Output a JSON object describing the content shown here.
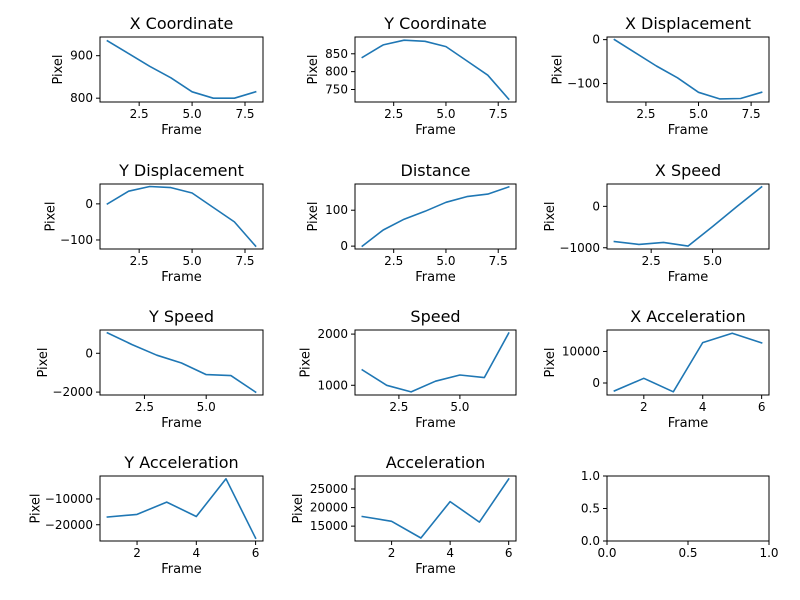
{
  "chart_data": [
    {
      "type": "line",
      "title": "X Coordinate",
      "xlabel": "Frame",
      "ylabel": "Pixel",
      "x": [
        1,
        2,
        3,
        4,
        5,
        6,
        7,
        8
      ],
      "values": [
        935,
        905,
        875,
        848,
        815,
        800,
        800,
        815
      ],
      "xlim": [
        0.65,
        8.35
      ],
      "ylim": [
        791,
        944
      ],
      "xticks": [
        2.5,
        5.0,
        7.5
      ],
      "xtick_labels": [
        "2.5",
        "5.0",
        "7.5"
      ],
      "yticks": [
        800,
        900
      ],
      "ytick_labels": [
        "800",
        "900"
      ]
    },
    {
      "type": "line",
      "title": "Y Coordinate",
      "xlabel": "Frame",
      "ylabel": "Pixel",
      "x": [
        1,
        2,
        3,
        4,
        5,
        6,
        7,
        8
      ],
      "values": [
        840,
        875,
        888,
        885,
        870,
        830,
        790,
        723
      ],
      "xlim": [
        0.65,
        8.35
      ],
      "ylim": [
        715,
        897
      ],
      "xticks": [
        2.5,
        5.0,
        7.5
      ],
      "xtick_labels": [
        "2.5",
        "5.0",
        "7.5"
      ],
      "yticks": [
        750,
        800,
        850
      ],
      "ytick_labels": [
        "750",
        "800",
        "850"
      ]
    },
    {
      "type": "line",
      "title": "X Displacement",
      "xlabel": "Frame",
      "ylabel": "Pixel",
      "x": [
        1,
        2,
        3,
        4,
        5,
        6,
        7,
        8
      ],
      "values": [
        0,
        -30,
        -60,
        -87,
        -120,
        -135,
        -134,
        -120
      ],
      "xlim": [
        0.65,
        8.35
      ],
      "ylim": [
        -142,
        6
      ],
      "xticks": [
        2.5,
        5.0,
        7.5
      ],
      "xtick_labels": [
        "2.5",
        "5.0",
        "7.5"
      ],
      "yticks": [
        -100,
        0
      ],
      "ytick_labels": [
        "−100",
        "0"
      ]
    },
    {
      "type": "line",
      "title": "Y Displacement",
      "xlabel": "Frame",
      "ylabel": "Pixel",
      "x": [
        1,
        2,
        3,
        4,
        5,
        6,
        7,
        8
      ],
      "values": [
        0,
        35,
        48,
        45,
        30,
        -10,
        -50,
        -117
      ],
      "xlim": [
        0.65,
        8.35
      ],
      "ylim": [
        -125,
        55
      ],
      "xticks": [
        2.5,
        5.0,
        7.5
      ],
      "xtick_labels": [
        "2.5",
        "5.0",
        "7.5"
      ],
      "yticks": [
        -100,
        0
      ],
      "ytick_labels": [
        "−100",
        "0"
      ]
    },
    {
      "type": "line",
      "title": "Distance",
      "xlabel": "Frame",
      "ylabel": "Pixel",
      "x": [
        1,
        2,
        3,
        4,
        5,
        6,
        7,
        8
      ],
      "values": [
        0,
        45,
        75,
        97,
        122,
        138,
        145,
        165
      ],
      "xlim": [
        0.65,
        8.35
      ],
      "ylim": [
        -8,
        173
      ],
      "xticks": [
        2.5,
        5.0,
        7.5
      ],
      "xtick_labels": [
        "2.5",
        "5.0",
        "7.5"
      ],
      "yticks": [
        0,
        100
      ],
      "ytick_labels": [
        "0",
        "100"
      ]
    },
    {
      "type": "line",
      "title": "X Speed",
      "xlabel": "Frame",
      "ylabel": "Pixel",
      "x": [
        1,
        2,
        3,
        4,
        5,
        6,
        7
      ],
      "values": [
        -850,
        -920,
        -870,
        -960,
        -490,
        0,
        470
      ],
      "xlim": [
        0.7,
        7.3
      ],
      "ylim": [
        -1030,
        540
      ],
      "xticks": [
        2.5,
        5.0
      ],
      "xtick_labels": [
        "2.5",
        "5.0"
      ],
      "yticks": [
        -1000,
        0
      ],
      "ytick_labels": [
        "−1000",
        "0"
      ]
    },
    {
      "type": "line",
      "title": "Y Speed",
      "xlabel": "Frame",
      "ylabel": "Pixel",
      "x": [
        1,
        2,
        3,
        4,
        5,
        6,
        7
      ],
      "values": [
        1050,
        450,
        -100,
        -500,
        -1100,
        -1150,
        -2000
      ],
      "xlim": [
        0.7,
        7.3
      ],
      "ylim": [
        -2150,
        1200
      ],
      "xticks": [
        2.5,
        5.0
      ],
      "xtick_labels": [
        "2.5",
        "5.0"
      ],
      "yticks": [
        -2000,
        0
      ],
      "ytick_labels": [
        "−2000",
        "0"
      ]
    },
    {
      "type": "line",
      "title": "Speed",
      "xlabel": "Frame",
      "ylabel": "Pixel",
      "x": [
        1,
        2,
        3,
        4,
        5,
        6,
        7
      ],
      "values": [
        1300,
        1000,
        870,
        1080,
        1200,
        1150,
        2020
      ],
      "xlim": [
        0.7,
        7.3
      ],
      "ylim": [
        810,
        2080
      ],
      "xticks": [
        2.5,
        5.0
      ],
      "xtick_labels": [
        "2.5",
        "5.0"
      ],
      "yticks": [
        1000,
        2000
      ],
      "ytick_labels": [
        "1000",
        "2000"
      ]
    },
    {
      "type": "line",
      "title": "X Acceleration",
      "xlabel": "Frame",
      "ylabel": "Pixel",
      "x": [
        1,
        2,
        3,
        4,
        5,
        6
      ],
      "values": [
        -2500,
        1500,
        -2800,
        12800,
        15800,
        12700
      ],
      "xlim": [
        0.75,
        6.25
      ],
      "ylim": [
        -3800,
        16800
      ],
      "xticks": [
        2,
        4,
        6
      ],
      "xtick_labels": [
        "2",
        "4",
        "6"
      ],
      "yticks": [
        0,
        10000
      ],
      "ytick_labels": [
        "0",
        "10000"
      ]
    },
    {
      "type": "line",
      "title": "Y Acceleration",
      "xlabel": "Frame",
      "ylabel": "Pixel",
      "x": [
        1,
        2,
        3,
        4,
        5,
        6
      ],
      "values": [
        -17000,
        -16000,
        -11200,
        -16800,
        -2200,
        -25200
      ],
      "xlim": [
        0.75,
        6.25
      ],
      "ylim": [
        -26300,
        -1100
      ],
      "xticks": [
        2,
        4,
        6
      ],
      "xtick_labels": [
        "2",
        "4",
        "6"
      ],
      "yticks": [
        -20000,
        -10000
      ],
      "ytick_labels": [
        "−20000",
        "−10000"
      ]
    },
    {
      "type": "line",
      "title": "Acceleration",
      "xlabel": "Frame",
      "ylabel": "Pixel",
      "x": [
        1,
        2,
        3,
        4,
        5,
        6
      ],
      "values": [
        17600,
        16300,
        11800,
        21600,
        16100,
        27700
      ],
      "xlim": [
        0.75,
        6.25
      ],
      "ylim": [
        11000,
        28500
      ],
      "xticks": [
        2,
        4,
        6
      ],
      "xtick_labels": [
        "2",
        "4",
        "6"
      ],
      "yticks": [
        15000,
        20000,
        25000
      ],
      "ytick_labels": [
        "15000",
        "20000",
        "25000"
      ]
    },
    {
      "type": "line",
      "title": "",
      "xlabel": "",
      "ylabel": "",
      "x": [],
      "values": [],
      "xlim": [
        0,
        1
      ],
      "ylim": [
        0,
        1
      ],
      "xticks": [
        0,
        0.5,
        1
      ],
      "xtick_labels": [
        "0.0",
        "0.5",
        "1.0"
      ],
      "yticks": [
        0,
        0.5,
        1
      ],
      "ytick_labels": [
        "0.0",
        "0.5",
        "1.0"
      ]
    }
  ]
}
